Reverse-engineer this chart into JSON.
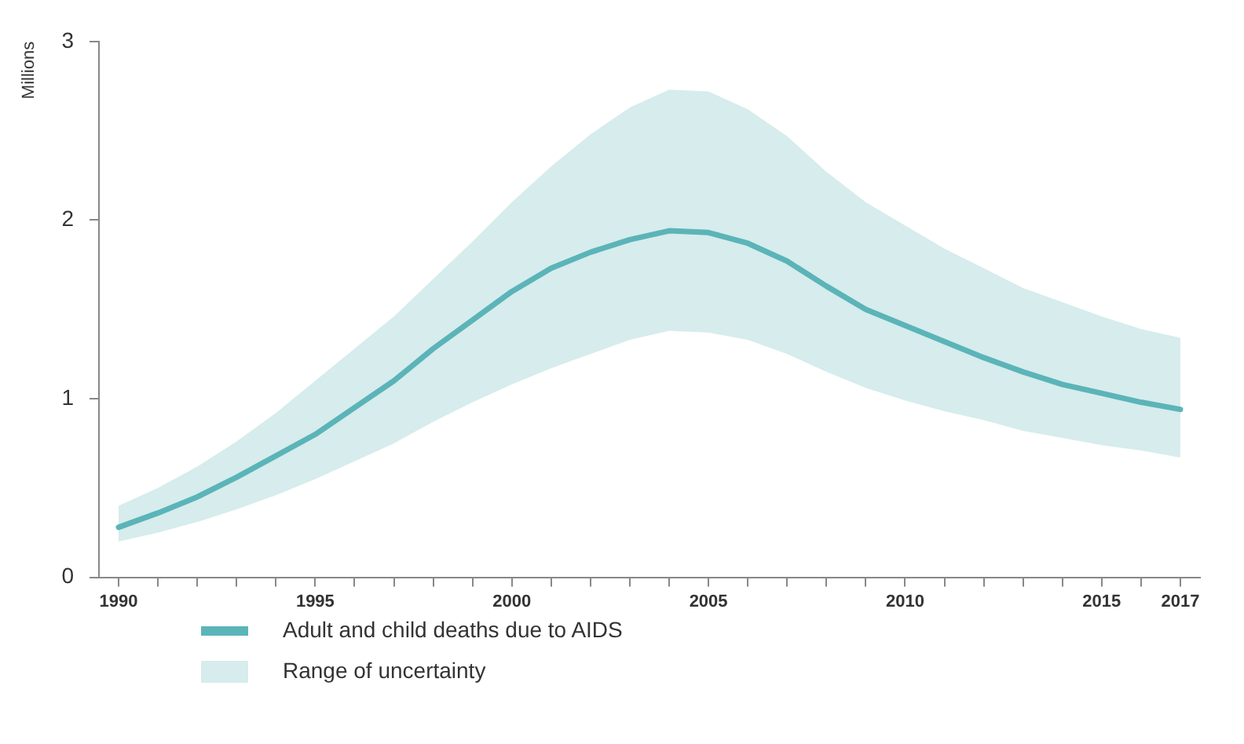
{
  "chart_data": {
    "type": "line",
    "ylabel": "Millions",
    "x": [
      1990,
      1991,
      1992,
      1993,
      1994,
      1995,
      1996,
      1997,
      1998,
      1999,
      2000,
      2001,
      2002,
      2003,
      2004,
      2005,
      2006,
      2007,
      2008,
      2009,
      2010,
      2011,
      2012,
      2013,
      2014,
      2015,
      2016,
      2017
    ],
    "series": [
      {
        "name": "Adult and child deaths due to AIDS",
        "color": "#5bb5b8",
        "values": [
          0.28,
          0.36,
          0.45,
          0.56,
          0.68,
          0.8,
          0.95,
          1.1,
          1.28,
          1.44,
          1.6,
          1.73,
          1.82,
          1.89,
          1.94,
          1.93,
          1.87,
          1.77,
          1.63,
          1.5,
          1.41,
          1.32,
          1.23,
          1.15,
          1.08,
          1.03,
          0.98,
          0.94
        ],
        "upper": [
          0.4,
          0.5,
          0.62,
          0.76,
          0.92,
          1.1,
          1.28,
          1.46,
          1.67,
          1.88,
          2.1,
          2.3,
          2.48,
          2.63,
          2.73,
          2.72,
          2.62,
          2.47,
          2.27,
          2.1,
          1.97,
          1.84,
          1.73,
          1.62,
          1.54,
          1.46,
          1.39,
          1.34
        ],
        "lower": [
          0.2,
          0.25,
          0.31,
          0.38,
          0.46,
          0.55,
          0.65,
          0.75,
          0.87,
          0.98,
          1.08,
          1.17,
          1.25,
          1.33,
          1.38,
          1.37,
          1.33,
          1.25,
          1.15,
          1.06,
          0.99,
          0.93,
          0.88,
          0.82,
          0.78,
          0.74,
          0.71,
          0.67
        ]
      }
    ],
    "annotations": [
      "Range of uncertainty"
    ],
    "xlim": [
      1989.5,
      2017.5
    ],
    "xticks": [
      1990,
      {
        "value": 1991,
        "label": null
      },
      {
        "value": 1992,
        "label": null
      },
      {
        "value": 1993,
        "label": null
      },
      {
        "value": 1994,
        "label": null
      },
      1995,
      {
        "value": 1996,
        "label": null
      },
      {
        "value": 1997,
        "label": null
      },
      {
        "value": 1998,
        "label": null
      },
      {
        "value": 1999,
        "label": null
      },
      2000,
      {
        "value": 2001,
        "label": null
      },
      {
        "value": 2002,
        "label": null
      },
      {
        "value": 2003,
        "label": null
      },
      {
        "value": 2004,
        "label": null
      },
      2005,
      {
        "value": 2006,
        "label": null
      },
      {
        "value": 2007,
        "label": null
      },
      {
        "value": 2008,
        "label": null
      },
      {
        "value": 2009,
        "label": null
      },
      2010,
      {
        "value": 2011,
        "label": null
      },
      {
        "value": 2012,
        "label": null
      },
      {
        "value": 2013,
        "label": null
      },
      {
        "value": 2014,
        "label": null
      },
      2015,
      {
        "value": 2016,
        "label": null
      },
      2017
    ],
    "ylim": [
      0,
      3
    ],
    "yticks": [
      0,
      1,
      2,
      3
    ],
    "grid": false,
    "legend": "bottom left",
    "marker": "none",
    "line_style": "solid"
  }
}
